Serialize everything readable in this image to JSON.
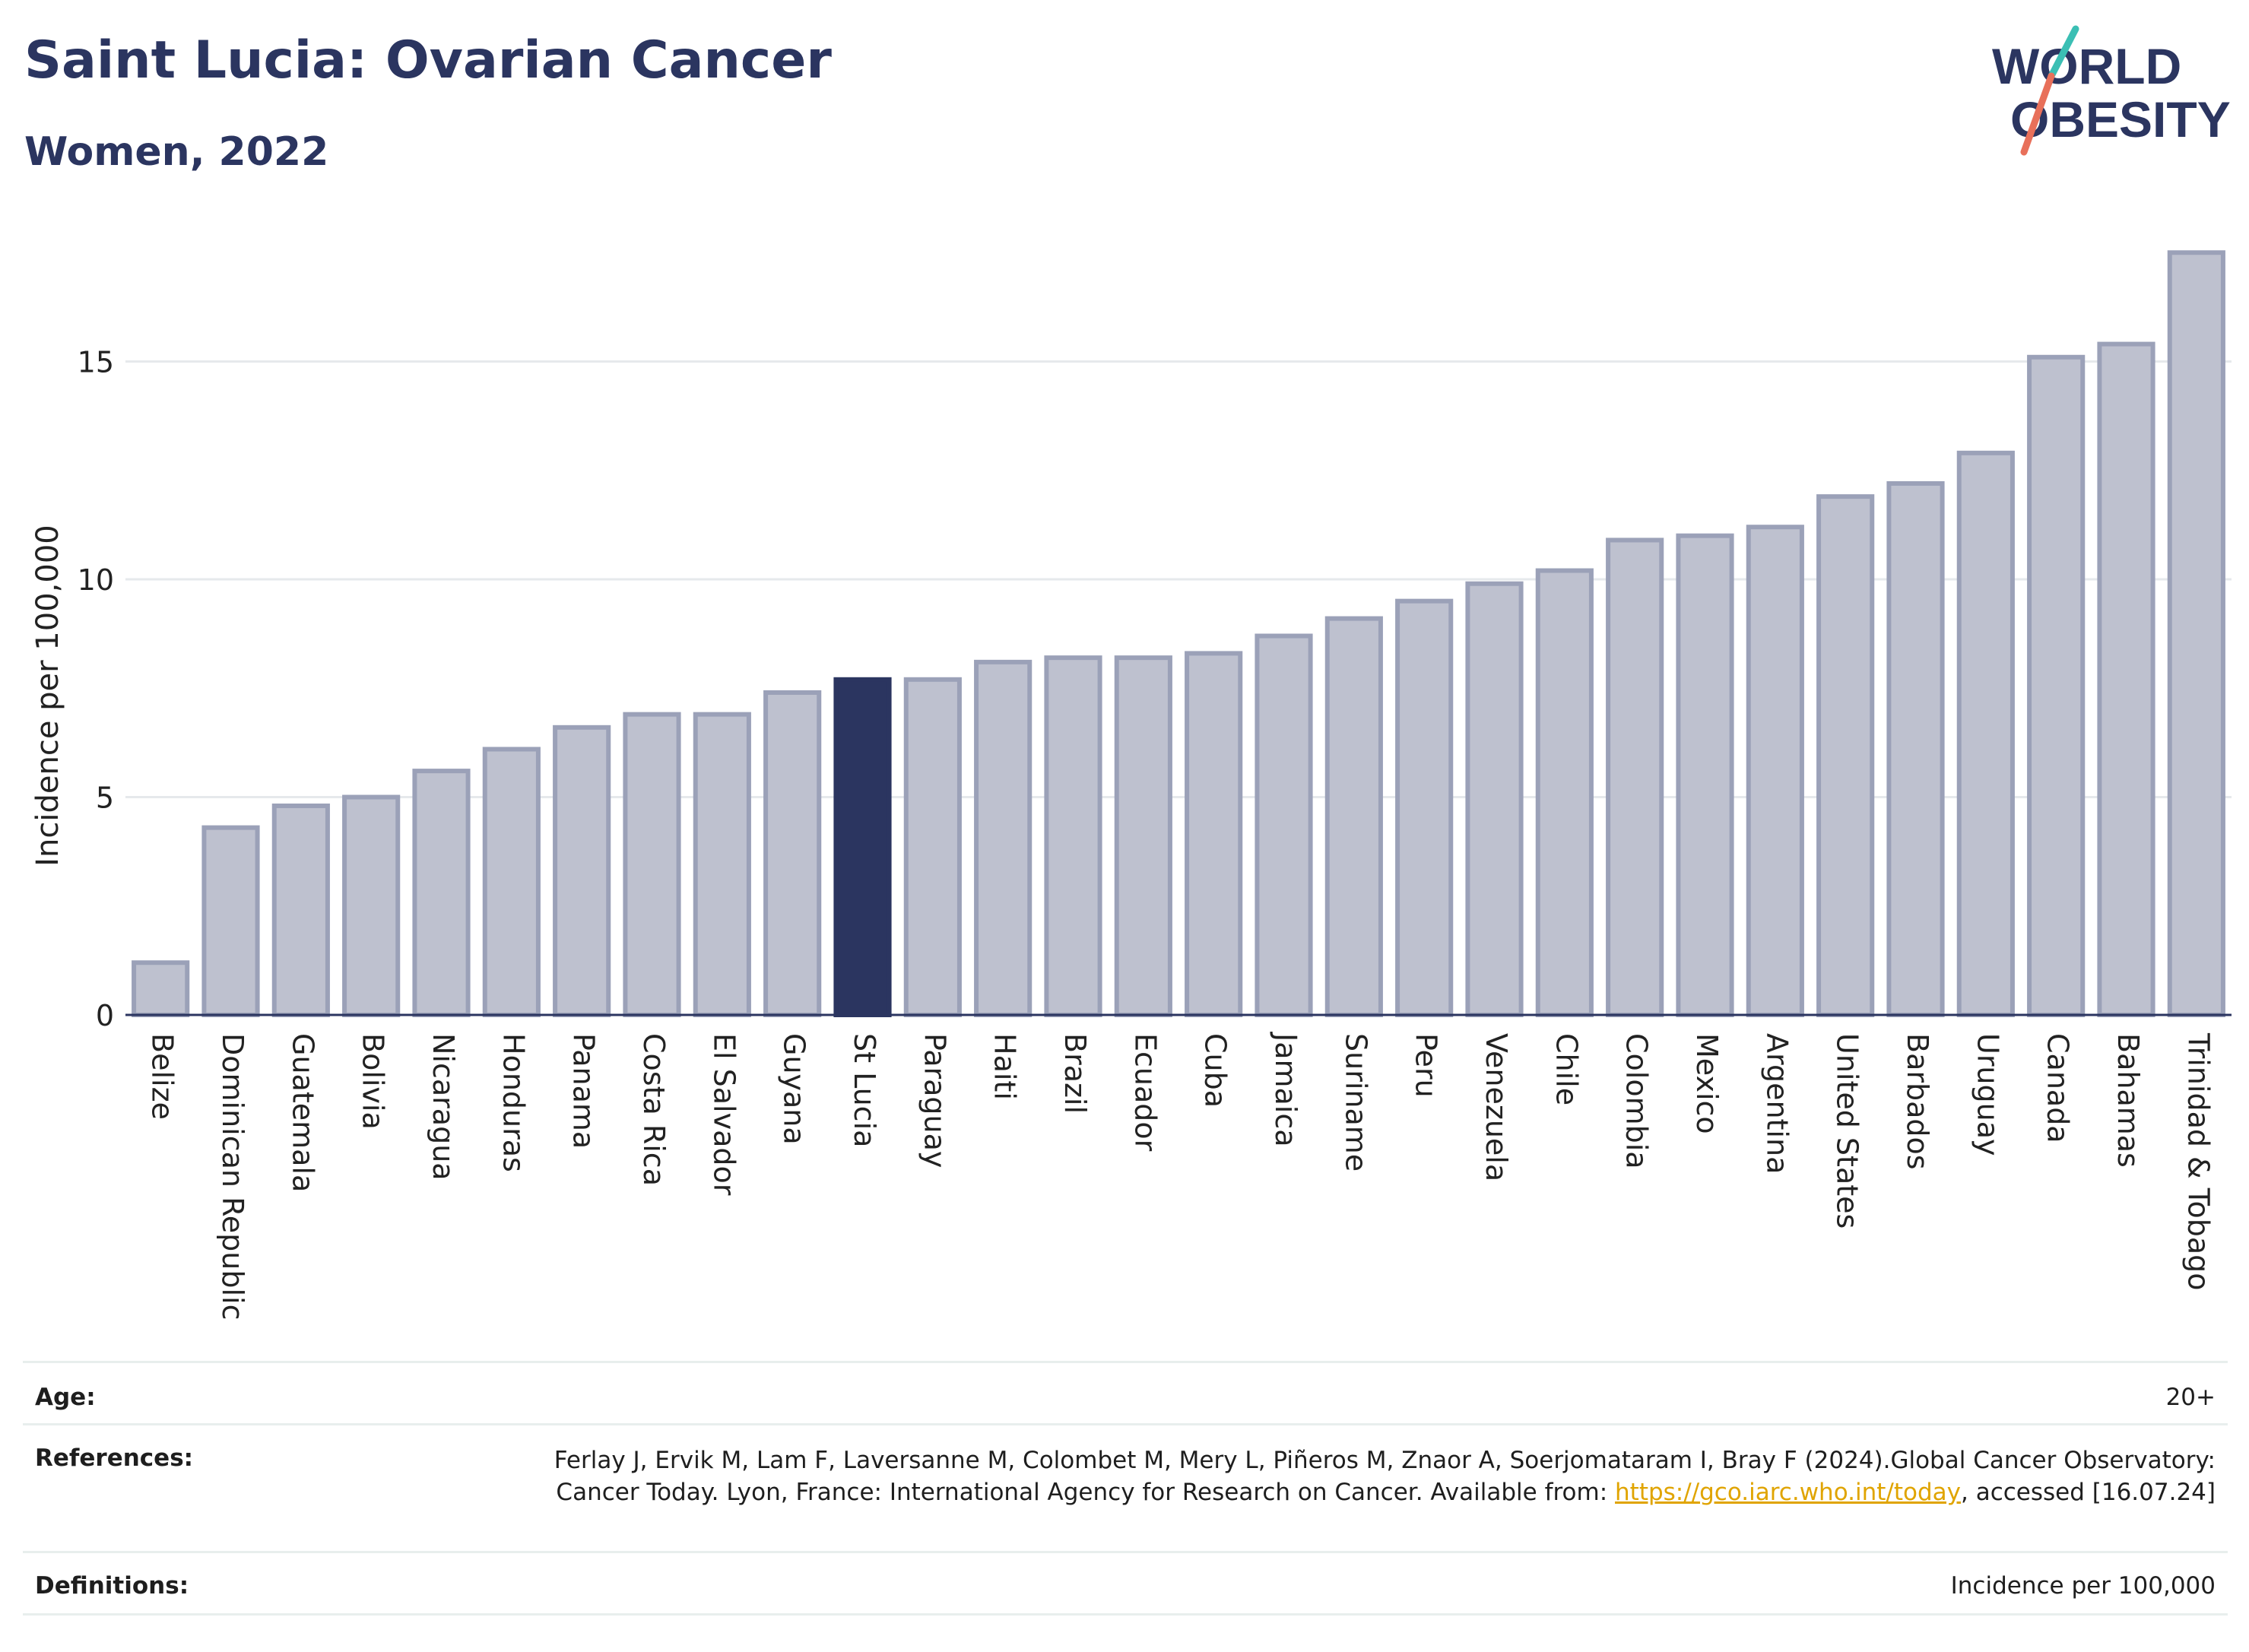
{
  "header": {
    "title": "Saint Lucia: Ovarian Cancer",
    "subtitle": "Women, 2022",
    "logo_line1": "WORLD",
    "logo_line2": "OBESITY"
  },
  "colors": {
    "bar": "#bec1cf",
    "bar_border": "#9ba1b8",
    "highlight": "#2b3560",
    "grid": "#e6e9ec",
    "logo_teal": "#3bbfb4",
    "logo_coral": "#e8705a"
  },
  "chart_data": {
    "type": "bar",
    "ylabel": "Incidence per 100,000",
    "ylim": [
      0,
      17.8
    ],
    "yticks": [
      0,
      5,
      10,
      15
    ],
    "grid": true,
    "highlight": "St Lucia",
    "categories": [
      "Belize",
      "Dominican Republic",
      "Guatemala",
      "Bolivia",
      "Nicaragua",
      "Honduras",
      "Panama",
      "Costa Rica",
      "El Salvador",
      "Guyana",
      "St Lucia",
      "Paraguay",
      "Haiti",
      "Brazil",
      "Ecuador",
      "Cuba",
      "Jamaica",
      "Suriname",
      "Peru",
      "Venezuela",
      "Chile",
      "Colombia",
      "Mexico",
      "Argentina",
      "United States",
      "Barbados",
      "Uruguay",
      "Canada",
      "Bahamas",
      "Trinidad & Tobago"
    ],
    "values": [
      1.2,
      4.3,
      4.8,
      5.0,
      5.6,
      6.1,
      6.6,
      6.9,
      6.9,
      7.4,
      7.7,
      7.7,
      8.1,
      8.2,
      8.2,
      8.3,
      8.7,
      9.1,
      9.5,
      9.9,
      10.2,
      10.9,
      11.0,
      11.2,
      11.9,
      12.2,
      12.9,
      15.1,
      15.4,
      17.5
    ]
  },
  "info": {
    "age_label": "Age:",
    "age_value": "20+",
    "references_label": "References:",
    "references_text": "Ferlay J, Ervik M, Lam F, Laversanne M, Colombet M, Mery L, Piñeros M, Znaor A, Soerjomataram I, Bray F (2024).Global Cancer Observatory: Cancer Today. Lyon, France: International Agency for Research on Cancer. Available from: ",
    "references_link": "https://gco.iarc.who.int/today",
    "references_tail": ", accessed [16.07.24]",
    "definitions_label": "Definitions:",
    "definitions_value": "Incidence per 100,000"
  }
}
